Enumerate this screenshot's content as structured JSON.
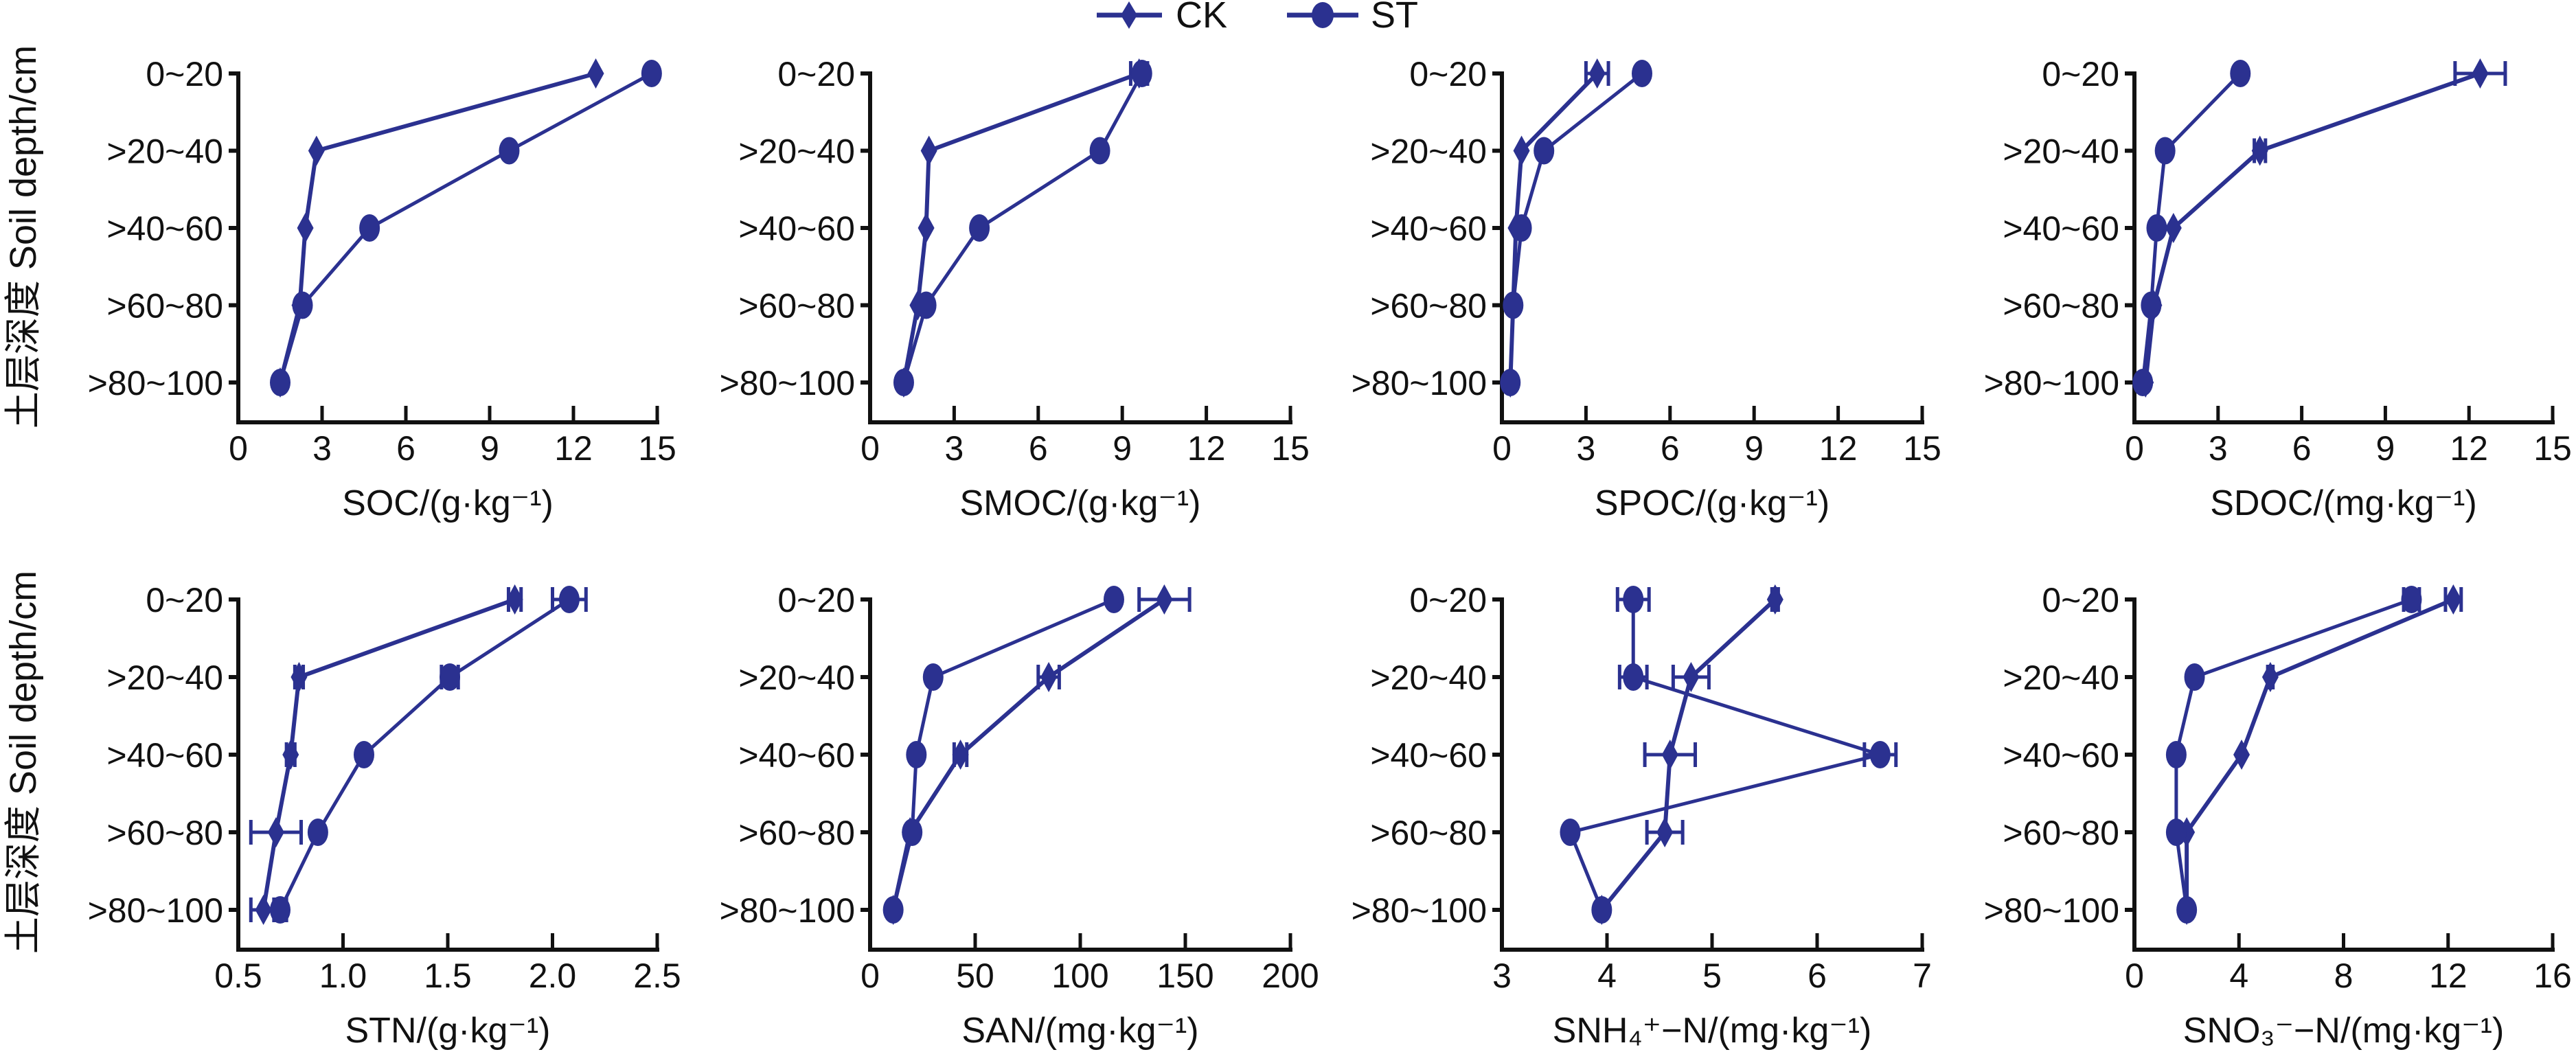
{
  "legend": {
    "items": [
      {
        "name": "CK",
        "marker": "diamond"
      },
      {
        "name": "ST",
        "marker": "circle"
      }
    ]
  },
  "colors": {
    "series": "#2b3190",
    "axis": "#111111"
  },
  "y_axis_label": "土层深度 Soil depth/cm",
  "chart_data": [
    {
      "type": "line",
      "xlabel": "SOC/(g·kg⁻¹)",
      "xlim": [
        0,
        15
      ],
      "xticks": [
        "0",
        "3",
        "6",
        "9",
        "12",
        "15"
      ],
      "categories": [
        "0~20",
        ">20~40",
        ">40~60",
        ">60~80",
        ">80~100"
      ],
      "series": [
        {
          "name": "CK",
          "values": [
            12.8,
            2.8,
            2.4,
            2.2,
            1.5
          ]
        },
        {
          "name": "ST",
          "values": [
            14.8,
            9.7,
            4.7,
            2.3,
            1.5
          ]
        }
      ]
    },
    {
      "type": "line",
      "xlabel": "SMOC/(g·kg⁻¹)",
      "xlim": [
        0,
        15
      ],
      "xticks": [
        "0",
        "3",
        "6",
        "9",
        "12",
        "15"
      ],
      "categories": [
        "0~20",
        ">20~40",
        ">40~60",
        ">60~80",
        ">80~100"
      ],
      "series": [
        {
          "name": "CK",
          "values": [
            9.6,
            2.1,
            2.0,
            1.7,
            1.2
          ],
          "errors": [
            0.3,
            0,
            0,
            0,
            0
          ]
        },
        {
          "name": "ST",
          "values": [
            9.7,
            8.2,
            3.9,
            2.0,
            1.2
          ]
        }
      ]
    },
    {
      "type": "line",
      "xlabel": "SPOC/(g·kg⁻¹)",
      "xlim": [
        0,
        15
      ],
      "xticks": [
        "0",
        "3",
        "6",
        "9",
        "12",
        "15"
      ],
      "categories": [
        "0~20",
        ">20~40",
        ">40~60",
        ">60~80",
        ">80~100"
      ],
      "series": [
        {
          "name": "CK",
          "values": [
            3.4,
            0.7,
            0.5,
            0.4,
            0.3
          ],
          "errors": [
            0.4,
            0,
            0,
            0,
            0
          ]
        },
        {
          "name": "ST",
          "values": [
            5.0,
            1.5,
            0.7,
            0.4,
            0.3
          ]
        }
      ]
    },
    {
      "type": "line",
      "xlabel": "SDOC/(mg·kg⁻¹)",
      "xlim": [
        0,
        15
      ],
      "xticks": [
        "0",
        "3",
        "6",
        "9",
        "12",
        "15"
      ],
      "categories": [
        "0~20",
        ">20~40",
        ">40~60",
        ">60~80",
        ">80~100"
      ],
      "series": [
        {
          "name": "CK",
          "values": [
            12.4,
            4.5,
            1.4,
            0.7,
            0.4
          ],
          "errors": [
            0.9,
            0.2,
            0,
            0,
            0
          ]
        },
        {
          "name": "ST",
          "values": [
            3.8,
            1.1,
            0.8,
            0.6,
            0.3
          ]
        }
      ]
    },
    {
      "type": "line",
      "xlabel": "STN/(g·kg⁻¹)",
      "xlim": [
        0.5,
        2.5
      ],
      "xticks": [
        "0.5",
        "1.0",
        "1.5",
        "2.0",
        "2.5"
      ],
      "categories": [
        "0~20",
        ">20~40",
        ">40~60",
        ">60~80",
        ">80~100"
      ],
      "series": [
        {
          "name": "CK",
          "values": [
            1.82,
            0.79,
            0.75,
            0.68,
            0.62
          ],
          "errors": [
            0.03,
            0.02,
            0.02,
            0.12,
            0.06
          ]
        },
        {
          "name": "ST",
          "values": [
            2.08,
            1.51,
            1.1,
            0.88,
            0.7
          ],
          "errors": [
            0.08,
            0.04,
            0,
            0,
            0.03
          ]
        }
      ]
    },
    {
      "type": "line",
      "xlabel": "SAN/(mg·kg⁻¹)",
      "xlim": [
        0,
        200
      ],
      "xticks": [
        "0",
        "50",
        "100",
        "150",
        "200"
      ],
      "categories": [
        "0~20",
        ">20~40",
        ">40~60",
        ">60~80",
        ">80~100"
      ],
      "series": [
        {
          "name": "CK",
          "values": [
            140,
            85,
            43,
            19,
            11
          ],
          "errors": [
            12,
            5,
            3,
            0,
            0
          ]
        },
        {
          "name": "ST",
          "values": [
            116,
            30,
            22,
            20,
            11
          ]
        }
      ]
    },
    {
      "type": "line",
      "xlabel": "SNH₄⁺−N/(mg·kg⁻¹)",
      "xlim": [
        3,
        7
      ],
      "xticks": [
        "3",
        "4",
        "5",
        "6",
        "7"
      ],
      "categories": [
        "0~20",
        ">20~40",
        ">40~60",
        ">60~80",
        ">80~100"
      ],
      "series": [
        {
          "name": "CK",
          "values": [
            5.6,
            4.8,
            4.6,
            4.55,
            3.95
          ],
          "errors": [
            0.03,
            0.17,
            0.24,
            0.17,
            0
          ]
        },
        {
          "name": "ST",
          "values": [
            4.25,
            4.25,
            6.6,
            3.65,
            3.95
          ],
          "errors": [
            0.15,
            0.13,
            0.15,
            0,
            0
          ]
        }
      ]
    },
    {
      "type": "line",
      "xlabel": "SNO₃⁻−N/(mg·kg⁻¹)",
      "xlim": [
        0,
        16
      ],
      "xticks": [
        "0",
        "4",
        "8",
        "12",
        "16"
      ],
      "categories": [
        "0~20",
        ">20~40",
        ">40~60",
        ">60~80",
        ">80~100"
      ],
      "series": [
        {
          "name": "CK",
          "values": [
            12.2,
            5.2,
            4.1,
            2.0,
            2.0
          ],
          "errors": [
            0.3,
            0.1,
            0,
            0,
            0
          ]
        },
        {
          "name": "ST",
          "values": [
            10.6,
            2.3,
            1.6,
            1.6,
            2.0
          ],
          "errors": [
            0.3,
            0,
            0,
            0,
            0
          ]
        }
      ]
    }
  ]
}
